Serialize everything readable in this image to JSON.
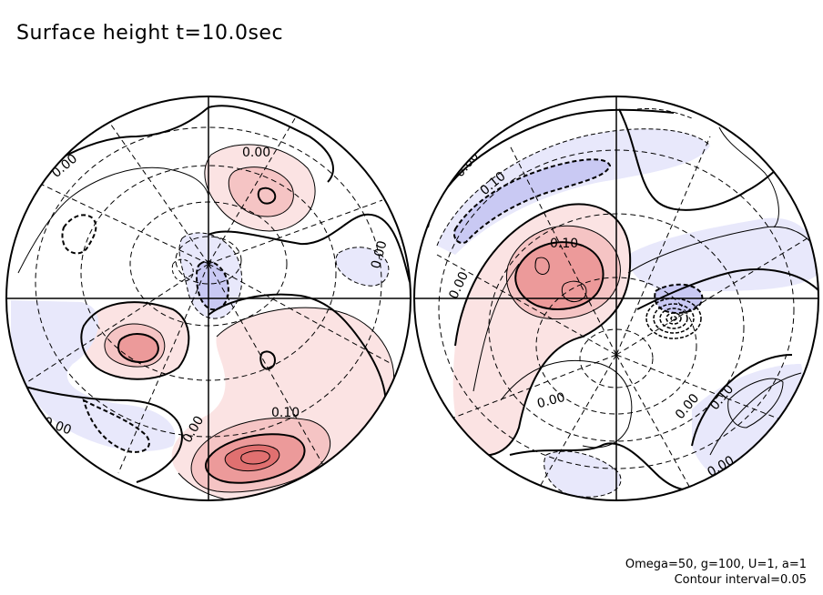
{
  "chart_data": {
    "type": "contour",
    "title": "Surface height t=10.0sec",
    "projection": "orthographic, two hemispheres",
    "contour_interval": 0.05,
    "parameters": {
      "Omega": 50,
      "g": 100,
      "U": 1,
      "a": 1
    },
    "footnote_params": "Omega=50, g=100, U=1, a=1",
    "footnote_interval": "Contour interval=0.05",
    "colors": {
      "positive_light": "#fbe3e3",
      "positive_mid": "#f5c4c4",
      "positive_strong": "#ec9a9a",
      "positive_peak": "#e07070",
      "negative_light": "#e8e8fb",
      "negative_mid": "#c9c9f3",
      "negative_strong": "#a5a5ea",
      "line": "#000000"
    },
    "hemispheres": [
      {
        "name": "left",
        "labels": [
          "0.00",
          "0.00",
          "0.00",
          "0.00",
          "0.00",
          "0.10"
        ],
        "maxima": [
          {
            "lon": -40,
            "lat": 45,
            "value": 0.15
          },
          {
            "lon": -25,
            "lat": -55,
            "value": 0.25
          },
          {
            "lon": -55,
            "lat": -10,
            "value": 0.15
          }
        ],
        "minima": [
          {
            "lon": 0,
            "lat": 0,
            "value": -0.1
          },
          {
            "lon": -60,
            "lat": -45,
            "value": -0.05
          }
        ]
      },
      {
        "name": "right",
        "labels": [
          "0.00",
          "0.10",
          "0.10",
          "0.00",
          "0.00",
          "0.00",
          "0.10",
          "0.00"
        ],
        "maxima": [
          {
            "lon": 40,
            "lat": 15,
            "value": 0.15
          }
        ],
        "minima": [
          {
            "lon": 55,
            "lat": 45,
            "value": -0.1
          },
          {
            "lon": 90,
            "lat": -5,
            "value": -0.3
          }
        ]
      }
    ]
  }
}
